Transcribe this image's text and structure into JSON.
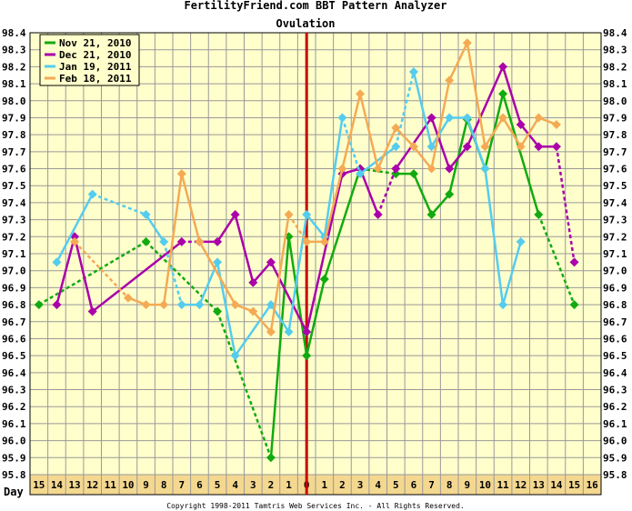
{
  "chart_data": {
    "type": "line",
    "title": "FertilityFriend.com BBT Pattern Analyzer",
    "subtitle": "Ovulation",
    "xlabel": "Day",
    "copyright": "Copyright 1998-2011 Tamtris Web Services Inc. - All Rights Reserved.",
    "ylim": [
      95.8,
      98.4
    ],
    "ytick_labels": [
      "95.8",
      "95.9",
      "96.0",
      "96.1",
      "96.2",
      "96.3",
      "96.4",
      "96.5",
      "96.6",
      "96.7",
      "96.8",
      "96.9",
      "97.0",
      "97.1",
      "97.2",
      "97.3",
      "97.4",
      "97.5",
      "97.6",
      "97.7",
      "97.8",
      "97.9",
      "98.0",
      "98.1",
      "98.2",
      "98.3",
      "98.4"
    ],
    "x_labels": [
      "15",
      "14",
      "13",
      "12",
      "11",
      "10",
      "9",
      "8",
      "7",
      "6",
      "5",
      "4",
      "3",
      "2",
      "1",
      "0",
      "1",
      "2",
      "3",
      "4",
      "5",
      "6",
      "7",
      "8",
      "9",
      "10",
      "11",
      "12",
      "13",
      "14",
      "15",
      "16"
    ],
    "ovulation_index": 15,
    "colors": {
      "plot_bg": "#ffffcc",
      "label_band": "#f4d890",
      "grid": "#999999",
      "ovulation_line": "#cc0000"
    },
    "legend_position": "top-left",
    "series": [
      {
        "name": "Nov 21, 2010",
        "color": "#11aa11",
        "points": [
          [
            0,
            96.8
          ],
          [
            6,
            97.17
          ],
          [
            10,
            96.76
          ],
          [
            13,
            95.9
          ],
          [
            14,
            97.2
          ],
          [
            15,
            96.5
          ],
          [
            16,
            96.95
          ],
          [
            18,
            97.6
          ],
          [
            20,
            97.57
          ],
          [
            21,
            97.57
          ],
          [
            22,
            97.33
          ],
          [
            23,
            97.45
          ],
          [
            24,
            97.89
          ],
          [
            25,
            97.6
          ],
          [
            26,
            98.04
          ],
          [
            28,
            97.33
          ],
          [
            30,
            96.8
          ]
        ],
        "dashed_segments": [
          [
            0,
            1
          ],
          [
            1,
            2
          ],
          [
            2,
            3
          ],
          [
            7,
            8
          ],
          [
            15,
            16
          ]
        ]
      },
      {
        "name": "Dec 21, 2010",
        "color": "#aa00aa",
        "points": [
          [
            1,
            96.8
          ],
          [
            2,
            97.2
          ],
          [
            3,
            96.76
          ],
          [
            8,
            97.17
          ],
          [
            9,
            97.17
          ],
          [
            10,
            97.17
          ],
          [
            11,
            97.33
          ],
          [
            12,
            96.93
          ],
          [
            13,
            97.05
          ],
          [
            15,
            96.64
          ],
          [
            17,
            97.57
          ],
          [
            18,
            97.6
          ],
          [
            19,
            97.33
          ],
          [
            20,
            97.6
          ],
          [
            22,
            97.9
          ],
          [
            23,
            97.6
          ],
          [
            24,
            97.73
          ],
          [
            26,
            98.2
          ],
          [
            27,
            97.86
          ],
          [
            28,
            97.73
          ],
          [
            29,
            97.73
          ],
          [
            30,
            97.05
          ]
        ],
        "dashed_segments": [
          [
            3,
            4
          ],
          [
            12,
            13
          ],
          [
            20,
            21
          ]
        ]
      },
      {
        "name": "Jan 19, 2011",
        "color": "#55ccee",
        "points": [
          [
            1,
            97.05
          ],
          [
            3,
            97.45
          ],
          [
            6,
            97.33
          ],
          [
            7,
            97.17
          ],
          [
            8,
            96.8
          ],
          [
            9,
            96.8
          ],
          [
            10,
            97.05
          ],
          [
            11,
            96.5
          ],
          [
            13,
            96.8
          ],
          [
            14,
            96.64
          ],
          [
            15,
            97.33
          ],
          [
            16,
            97.2
          ],
          [
            17,
            97.9
          ],
          [
            18,
            97.57
          ],
          [
            20,
            97.73
          ],
          [
            21,
            98.17
          ],
          [
            22,
            97.73
          ],
          [
            23,
            97.9
          ],
          [
            24,
            97.9
          ],
          [
            25,
            97.6
          ],
          [
            26,
            96.8
          ],
          [
            27,
            97.17
          ]
        ],
        "dashed_segments": [
          [
            1,
            2
          ],
          [
            3,
            4
          ],
          [
            12,
            13
          ],
          [
            14,
            15
          ]
        ]
      },
      {
        "name": "Feb 18, 2011",
        "color": "#f4aa55",
        "points": [
          [
            2,
            97.17
          ],
          [
            5,
            96.84
          ],
          [
            6,
            96.8
          ],
          [
            7,
            96.8
          ],
          [
            8,
            97.57
          ],
          [
            9,
            97.17
          ],
          [
            11,
            96.8
          ],
          [
            12,
            96.76
          ],
          [
            13,
            96.64
          ],
          [
            14,
            97.33
          ],
          [
            15,
            97.17
          ],
          [
            16,
            97.17
          ],
          [
            17,
            97.6
          ],
          [
            18,
            98.04
          ],
          [
            19,
            97.6
          ],
          [
            20,
            97.84
          ],
          [
            21,
            97.73
          ],
          [
            22,
            97.6
          ],
          [
            23,
            98.12
          ],
          [
            24,
            98.34
          ],
          [
            25,
            97.73
          ],
          [
            26,
            97.9
          ],
          [
            27,
            97.73
          ],
          [
            28,
            97.9
          ],
          [
            29,
            97.86
          ]
        ],
        "dashed_segments": [
          [
            0,
            1
          ],
          [
            9,
            10
          ]
        ]
      }
    ]
  }
}
